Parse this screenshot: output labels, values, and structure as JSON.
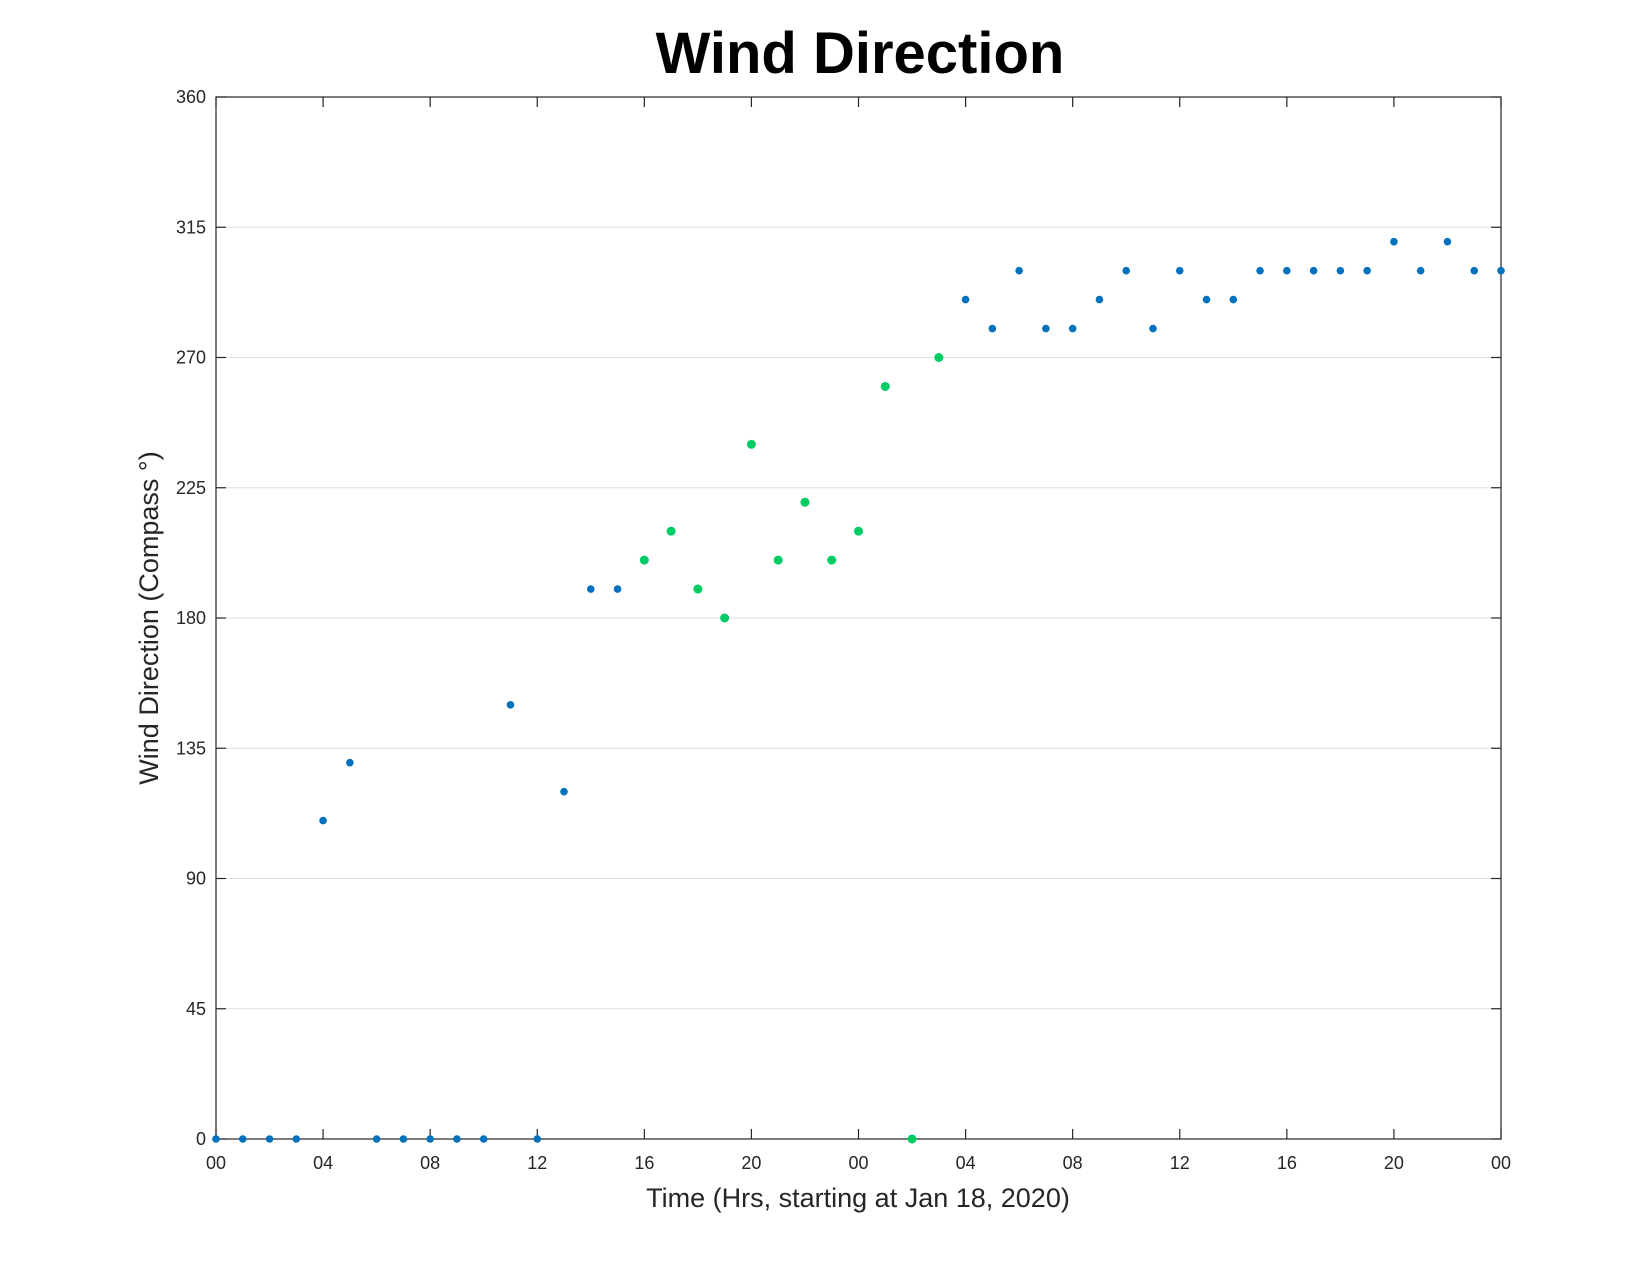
{
  "chart_data": {
    "type": "scatter",
    "title": "Wind Direction",
    "xlabel": "Time (Hrs, starting at Jan 18, 2020)",
    "ylabel": "Wind Direction (Compass °)",
    "ylim": [
      0,
      360
    ],
    "xlim": [
      "Jan 18 00:00",
      "Jan 20 00:00"
    ],
    "yticks": [
      0,
      45,
      90,
      135,
      180,
      225,
      270,
      315,
      360
    ],
    "xticks": [
      "00",
      "04",
      "08",
      "12",
      "16",
      "20",
      "00",
      "04",
      "08",
      "12",
      "16",
      "20",
      "00"
    ],
    "grid": "y",
    "colors": {
      "blue": "#0072bd",
      "green": "#00cc66"
    },
    "series": [
      {
        "color": "#0072bd",
        "points": [
          [
            "Jan 18 00:00",
            0
          ],
          [
            "Jan 18 01:00",
            0
          ],
          [
            "Jan 18 02:00",
            0
          ],
          [
            "Jan 18 03:00",
            0
          ],
          [
            "Jan 18 04:00",
            110
          ],
          [
            "Jan 18 05:00",
            130
          ],
          [
            "Jan 18 06:00",
            0
          ],
          [
            "Jan 18 07:00",
            0
          ],
          [
            "Jan 18 08:00",
            0
          ],
          [
            "Jan 18 09:00",
            0
          ],
          [
            "Jan 18 10:00",
            0
          ],
          [
            "Jan 18 11:00",
            150
          ],
          [
            "Jan 18 12:00",
            0
          ],
          [
            "Jan 18 13:00",
            120
          ],
          [
            "Jan 18 14:00",
            190
          ],
          [
            "Jan 18 15:00",
            190
          ],
          [
            "Jan 19 04:00",
            290
          ],
          [
            "Jan 19 05:00",
            280
          ],
          [
            "Jan 19 06:00",
            300
          ],
          [
            "Jan 19 07:00",
            280
          ],
          [
            "Jan 19 08:00",
            280
          ],
          [
            "Jan 19 09:00",
            290
          ],
          [
            "Jan 19 10:00",
            300
          ],
          [
            "Jan 19 11:00",
            280
          ],
          [
            "Jan 19 12:00",
            300
          ],
          [
            "Jan 19 13:00",
            290
          ],
          [
            "Jan 19 14:00",
            290
          ],
          [
            "Jan 19 15:00",
            300
          ],
          [
            "Jan 19 16:00",
            300
          ],
          [
            "Jan 19 17:00",
            300
          ],
          [
            "Jan 19 18:00",
            300
          ],
          [
            "Jan 19 19:00",
            300
          ],
          [
            "Jan 19 20:00",
            310
          ],
          [
            "Jan 19 21:00",
            300
          ],
          [
            "Jan 19 22:00",
            310
          ],
          [
            "Jan 19 23:00",
            300
          ],
          [
            "Jan 20 00:00",
            300
          ]
        ]
      },
      {
        "color": "#00cc66",
        "points": [
          [
            "Jan 18 16:00",
            200
          ],
          [
            "Jan 18 17:00",
            210
          ],
          [
            "Jan 18 18:00",
            190
          ],
          [
            "Jan 18 19:00",
            180
          ],
          [
            "Jan 18 20:00",
            240
          ],
          [
            "Jan 18 21:00",
            200
          ],
          [
            "Jan 18 22:00",
            220
          ],
          [
            "Jan 18 23:00",
            200
          ],
          [
            "Jan 19 00:00",
            210
          ],
          [
            "Jan 19 01:00",
            260
          ],
          [
            "Jan 19 02:00",
            0
          ],
          [
            "Jan 19 03:00",
            270
          ]
        ]
      }
    ]
  }
}
